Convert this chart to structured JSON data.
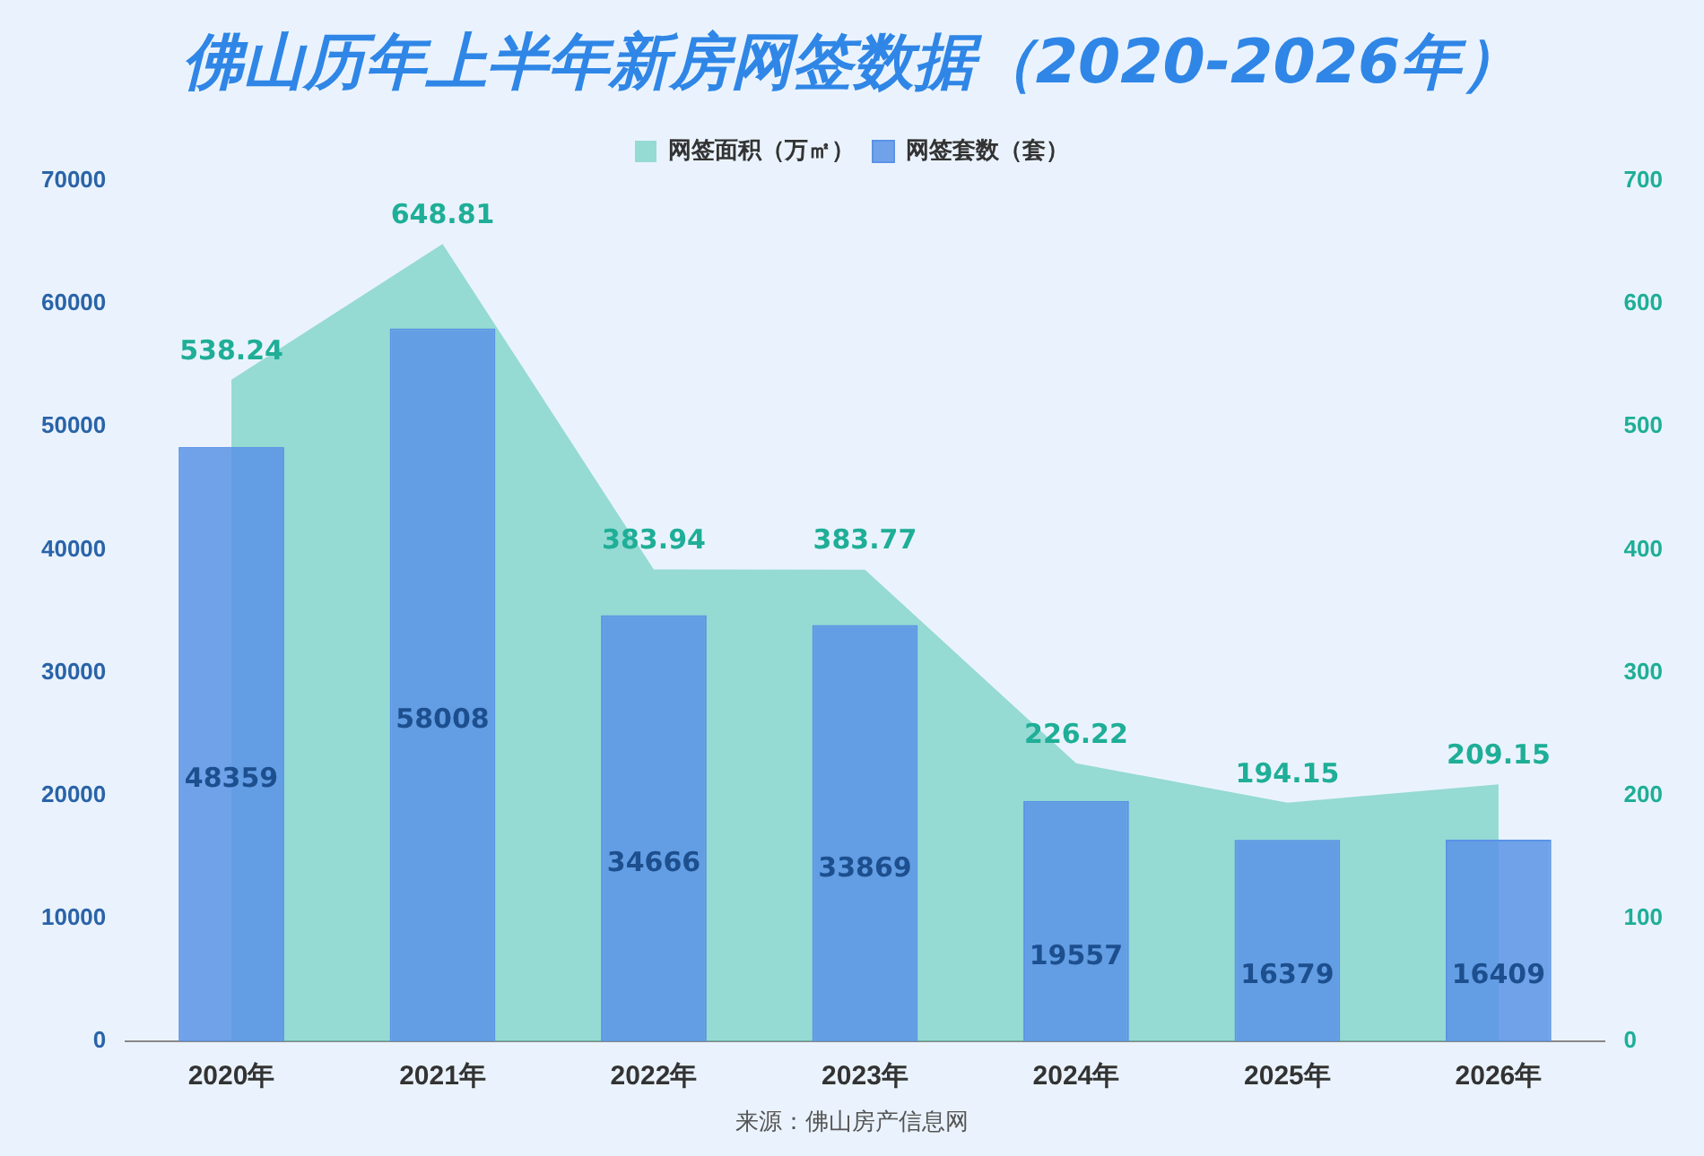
{
  "chart_data": {
    "type": "bar",
    "title": "佛山历年上半年新房网签数据（2020-2026年）",
    "categories": [
      "2020年",
      "2021年",
      "2022年",
      "2023年",
      "2024年",
      "2025年",
      "2026年"
    ],
    "series": [
      {
        "name": "网签面积（万㎡）",
        "type": "area",
        "axis": "y2",
        "color": "#5ccab8",
        "values": [
          538.24,
          648.81,
          383.94,
          383.77,
          226.22,
          194.15,
          209.15
        ]
      },
      {
        "name": "网签套数（套）",
        "type": "bar",
        "color": "#5a93e6",
        "values": [
          48359,
          58008,
          34666,
          33869,
          19557,
          16379,
          16409
        ]
      }
    ],
    "ylim": [
      0,
      70000
    ],
    "yticks": [
      0,
      10000,
      20000,
      30000,
      40000,
      50000,
      60000,
      70000
    ],
    "y2lim": [
      0,
      700
    ],
    "y2ticks": [
      0,
      100,
      200,
      300,
      400,
      500,
      600,
      700
    ],
    "grid": false,
    "legend": "top",
    "data_labels": true,
    "annotations": [
      "来源：佛山房产信息网"
    ]
  }
}
